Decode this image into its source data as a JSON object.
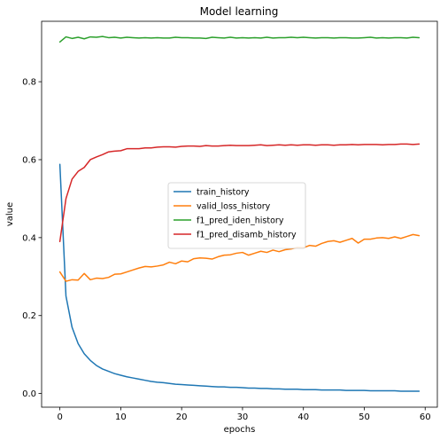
{
  "chart_data": {
    "type": "line",
    "title": "Model learning",
    "xlabel": "epochs",
    "ylabel": "value",
    "xlim": [
      -3,
      62
    ],
    "ylim": [
      -0.035,
      0.955
    ],
    "xticks": [
      0,
      10,
      20,
      30,
      40,
      50,
      60
    ],
    "yticks": [
      0.0,
      0.2,
      0.4,
      0.6,
      0.8
    ],
    "xtick_labels": [
      "0",
      "10",
      "20",
      "30",
      "40",
      "50",
      "60"
    ],
    "ytick_labels": [
      "0.0",
      "0.2",
      "0.4",
      "0.6",
      "0.8"
    ],
    "grid": false,
    "legend_position": "center-right",
    "x": [
      0,
      1,
      2,
      3,
      4,
      5,
      6,
      7,
      8,
      9,
      10,
      11,
      12,
      13,
      14,
      15,
      16,
      17,
      18,
      19,
      20,
      21,
      22,
      23,
      24,
      25,
      26,
      27,
      28,
      29,
      30,
      31,
      32,
      33,
      34,
      35,
      36,
      37,
      38,
      39,
      40,
      41,
      42,
      43,
      44,
      45,
      46,
      47,
      48,
      49,
      50,
      51,
      52,
      53,
      54,
      55,
      56,
      57,
      58,
      59
    ],
    "series": [
      {
        "name": "train_history",
        "color": "#1f77b4",
        "values": [
          0.588,
          0.25,
          0.17,
          0.128,
          0.102,
          0.085,
          0.072,
          0.063,
          0.057,
          0.051,
          0.047,
          0.043,
          0.04,
          0.037,
          0.034,
          0.031,
          0.029,
          0.028,
          0.026,
          0.024,
          0.023,
          0.022,
          0.021,
          0.02,
          0.019,
          0.018,
          0.017,
          0.017,
          0.016,
          0.016,
          0.015,
          0.014,
          0.014,
          0.013,
          0.013,
          0.012,
          0.012,
          0.011,
          0.011,
          0.011,
          0.01,
          0.01,
          0.01,
          0.009,
          0.009,
          0.009,
          0.009,
          0.008,
          0.008,
          0.008,
          0.008,
          0.007,
          0.007,
          0.007,
          0.007,
          0.007,
          0.006,
          0.006,
          0.006,
          0.006
        ]
      },
      {
        "name": "valid_loss_history",
        "color": "#ff7f0e",
        "values": [
          0.312,
          0.288,
          0.292,
          0.291,
          0.308,
          0.292,
          0.296,
          0.295,
          0.298,
          0.306,
          0.307,
          0.312,
          0.317,
          0.322,
          0.326,
          0.325,
          0.327,
          0.33,
          0.337,
          0.333,
          0.34,
          0.338,
          0.346,
          0.348,
          0.347,
          0.345,
          0.351,
          0.355,
          0.356,
          0.36,
          0.362,
          0.355,
          0.36,
          0.365,
          0.362,
          0.368,
          0.364,
          0.369,
          0.371,
          0.375,
          0.374,
          0.38,
          0.378,
          0.385,
          0.39,
          0.392,
          0.388,
          0.393,
          0.398,
          0.386,
          0.396,
          0.396,
          0.399,
          0.4,
          0.398,
          0.402,
          0.398,
          0.403,
          0.408,
          0.405
        ]
      },
      {
        "name": "f1_pred_iden_history",
        "color": "#2ca02c",
        "values": [
          0.902,
          0.915,
          0.911,
          0.914,
          0.91,
          0.915,
          0.914,
          0.916,
          0.913,
          0.914,
          0.912,
          0.914,
          0.913,
          0.912,
          0.913,
          0.912,
          0.913,
          0.912,
          0.912,
          0.914,
          0.913,
          0.913,
          0.912,
          0.912,
          0.911,
          0.914,
          0.913,
          0.912,
          0.914,
          0.912,
          0.913,
          0.912,
          0.913,
          0.912,
          0.914,
          0.912,
          0.913,
          0.913,
          0.914,
          0.913,
          0.914,
          0.913,
          0.912,
          0.913,
          0.913,
          0.912,
          0.913,
          0.913,
          0.912,
          0.912,
          0.913,
          0.914,
          0.912,
          0.913,
          0.912,
          0.913,
          0.913,
          0.912,
          0.914,
          0.913
        ]
      },
      {
        "name": "f1_pred_disamb_history",
        "color": "#d62728",
        "values": [
          0.39,
          0.5,
          0.55,
          0.57,
          0.58,
          0.6,
          0.607,
          0.613,
          0.62,
          0.622,
          0.623,
          0.628,
          0.628,
          0.628,
          0.63,
          0.63,
          0.632,
          0.633,
          0.633,
          0.632,
          0.634,
          0.635,
          0.635,
          0.634,
          0.636,
          0.635,
          0.635,
          0.636,
          0.637,
          0.636,
          0.636,
          0.636,
          0.637,
          0.638,
          0.636,
          0.637,
          0.638,
          0.637,
          0.638,
          0.637,
          0.638,
          0.638,
          0.637,
          0.638,
          0.638,
          0.637,
          0.638,
          0.638,
          0.639,
          0.638,
          0.639,
          0.639,
          0.639,
          0.638,
          0.639,
          0.639,
          0.64,
          0.64,
          0.639,
          0.64
        ]
      }
    ]
  }
}
